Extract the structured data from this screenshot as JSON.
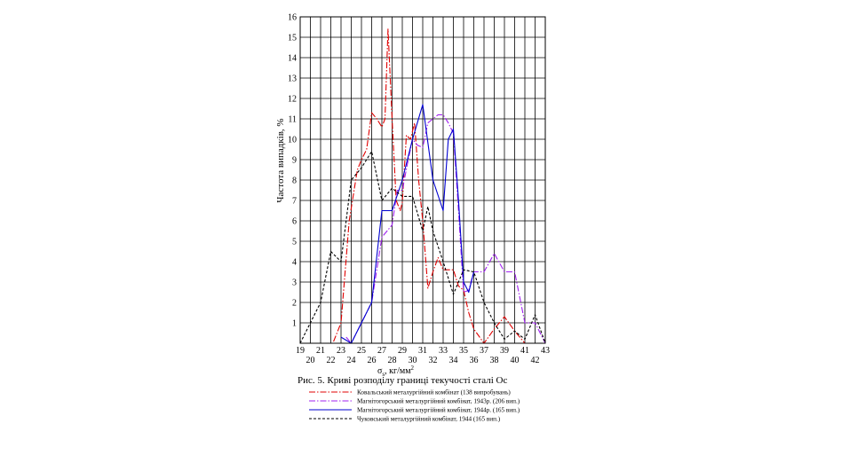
{
  "chart_data": {
    "type": "line",
    "ylabel": "Частота випадків, %",
    "xlabel_main": "σ",
    "xlabel_sub": "s",
    "xlabel_units": ", кг/мм",
    "xlabel_sup": "2",
    "caption": "Рис. 5. Криві розподілу границі текучості сталі Ос",
    "xlim": [
      19,
      43
    ],
    "ylim": [
      0,
      16
    ],
    "y_ticks": [
      1,
      2,
      3,
      4,
      5,
      6,
      7,
      8,
      9,
      10,
      11,
      12,
      13,
      14,
      15,
      16
    ],
    "x_ticks_odd": [
      19,
      21,
      23,
      25,
      27,
      29,
      31,
      33,
      35,
      37,
      39,
      41,
      43
    ],
    "x_ticks_even": [
      20,
      22,
      24,
      26,
      28,
      30,
      32,
      34,
      36,
      38,
      40,
      42
    ],
    "grid": true,
    "legend_position": "bottom",
    "series": [
      {
        "name": "Ковальський металургійний комбінат (138 випробувань)",
        "color": "#e00000",
        "dash": "7,2,1.5,2",
        "x": [
          21.3,
          22.2,
          23.0,
          23.8,
          24.6,
          25.0,
          25.5,
          26.0,
          26.5,
          27.0,
          27.3,
          27.6,
          28.0,
          28.4,
          28.8,
          29.0,
          29.4,
          29.8,
          30.2,
          30.6,
          31.0,
          31.5,
          32.0,
          32.5,
          33.0,
          33.5,
          34.0,
          34.5,
          35.0,
          35.5,
          36.0,
          37.0,
          38.0,
          39.0,
          40.0,
          41.0,
          42.0
        ],
        "y": [
          0,
          0,
          1.0,
          6.0,
          8.5,
          9.0,
          9.5,
          11.3,
          11.0,
          10.6,
          11.0,
          15.4,
          11.0,
          7.0,
          6.5,
          6.9,
          10.2,
          10.0,
          10.8,
          8.0,
          6.0,
          2.7,
          3.5,
          4.2,
          3.6,
          3.6,
          3.6,
          2.8,
          2.6,
          1.5,
          0.7,
          0,
          0.7,
          1.3,
          0.6,
          0,
          0
        ]
      },
      {
        "name": "Магнітогорський металургійний комбінат, 1943р. (206 вип.)",
        "color": "#a020f0",
        "dash": "7,2,1.5,2",
        "x": [
          23.5,
          24.0,
          25.0,
          26.0,
          27.0,
          27.5,
          28.0,
          28.5,
          29.0,
          29.5,
          30.0,
          30.5,
          31.0,
          31.5,
          32.0,
          32.5,
          33.0,
          33.5,
          34.0,
          34.5,
          35.0,
          35.5,
          36.0,
          37.0,
          38.0,
          39.0,
          40.0,
          41.0,
          42.0,
          43.0
        ],
        "y": [
          0.3,
          0,
          1.0,
          2.0,
          5.2,
          5.5,
          5.8,
          7.5,
          7.5,
          8.8,
          10.0,
          9.7,
          9.6,
          10.8,
          11.0,
          11.2,
          11.2,
          10.8,
          10.3,
          6.5,
          2.5,
          2.6,
          3.5,
          3.5,
          4.4,
          3.5,
          3.5,
          1.0,
          1.0,
          0
        ]
      },
      {
        "name": "Магнітогорський металургійний комбінат, 1944р. (165 вип.)",
        "color": "#0000d0",
        "dash": "none",
        "x": [
          23.0,
          24.0,
          25.0,
          26.0,
          27.0,
          28.0,
          29.0,
          30.0,
          31.0,
          32.0,
          33.0,
          33.5,
          34.0,
          34.5,
          35.0,
          35.5,
          36.0
        ],
        "y": [
          0.3,
          0,
          1.0,
          2.0,
          6.5,
          6.5,
          8.0,
          10.0,
          11.7,
          8.0,
          6.5,
          10.0,
          10.5,
          7.0,
          3.0,
          2.5,
          3.5
        ]
      },
      {
        "name": "Чуковський металургійний комбінат, 1944 (165 вип.)",
        "color": "#000000",
        "dash": "3,2",
        "x": [
          19.0,
          20.0,
          21.0,
          22.0,
          23.0,
          24.0,
          25.0,
          26.0,
          27.0,
          28.0,
          29.0,
          30.0,
          31.0,
          31.5,
          32.0,
          33.0,
          34.0,
          35.0,
          36.0,
          37.0,
          38.0,
          39.0,
          40.0,
          41.0,
          42.0,
          43.0
        ],
        "y": [
          0,
          1.0,
          2.0,
          4.5,
          4.0,
          8.0,
          8.6,
          9.4,
          7.0,
          7.6,
          7.2,
          7.2,
          5.5,
          6.7,
          5.5,
          4.0,
          2.4,
          3.6,
          3.5,
          2.0,
          1.0,
          0.2,
          0.6,
          0.2,
          1.4,
          0
        ]
      }
    ]
  }
}
